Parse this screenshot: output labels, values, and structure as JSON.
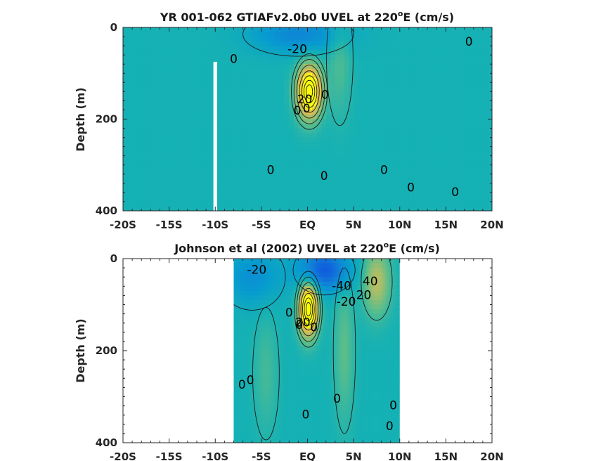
{
  "chart_data": [
    {
      "type": "heatmap",
      "title_main": "YR 001-062 GTIAFv2.0b0 UVEL at 220",
      "title_sup": "o",
      "title_end": "E (cm/s)",
      "ylabel": "Depth (m)",
      "xlim": [
        -20,
        20
      ],
      "ylim": [
        400,
        0
      ],
      "xticks": [
        -20,
        -15,
        -10,
        -5,
        0,
        5,
        10,
        15,
        20
      ],
      "xtick_labels": [
        "-20S",
        "-15S",
        "-10S",
        "-5S",
        "EQ",
        "5N",
        "10N",
        "15N",
        "20N"
      ],
      "yticks": [
        0,
        200,
        400
      ],
      "ytick_labels": [
        "0",
        "200",
        "400"
      ],
      "data_extent": [
        -20,
        20
      ],
      "gaps": [
        {
          "x0": -10.2,
          "x1": -9.8,
          "depth_top": 75
        }
      ],
      "features": [
        {
          "kind": "core",
          "x": 0.2,
          "depth": 140,
          "dx": 1.3,
          "dz": 55,
          "value": 90
        },
        {
          "kind": "jet",
          "x": -1,
          "depth": 15,
          "dx": 5,
          "dz": 40,
          "value": -25
        },
        {
          "kind": "jet",
          "x": 3.5,
          "depth": 70,
          "dx": 1.2,
          "dz": 120,
          "value": 12
        }
      ],
      "contour_labels": [
        {
          "x": -8,
          "depth": 70,
          "text": "0"
        },
        {
          "x": -1.1,
          "depth": 48,
          "text": "-20"
        },
        {
          "x": 17.5,
          "depth": 32,
          "text": "0"
        },
        {
          "x": 1.9,
          "depth": 148,
          "text": "0"
        },
        {
          "x": -0.3,
          "depth": 158,
          "text": "20"
        },
        {
          "x": -1.1,
          "depth": 182,
          "text": "0"
        },
        {
          "x": -0.1,
          "depth": 178,
          "text": "0"
        },
        {
          "x": -4,
          "depth": 312,
          "text": "0"
        },
        {
          "x": 1.8,
          "depth": 325,
          "text": "0"
        },
        {
          "x": 8.3,
          "depth": 312,
          "text": "0"
        },
        {
          "x": 11.2,
          "depth": 350,
          "text": "0"
        },
        {
          "x": 16,
          "depth": 360,
          "text": "0"
        }
      ]
    },
    {
      "type": "heatmap",
      "title_main": "Johnson et al (2002) UVEL at 220",
      "title_sup": "o",
      "title_end": "E (cm/s)",
      "ylabel": "Depth (m)",
      "xlim": [
        -20,
        20
      ],
      "ylim": [
        400,
        0
      ],
      "xticks": [
        -20,
        -15,
        -10,
        -5,
        0,
        5,
        10,
        15,
        20
      ],
      "xtick_labels": [
        "-20S",
        "-15S",
        "-10S",
        "-5S",
        "EQ",
        "5N",
        "10N",
        "15N",
        "20N"
      ],
      "yticks": [
        0,
        200,
        400
      ],
      "ytick_labels": [
        "0",
        "200",
        "400"
      ],
      "data_extent": [
        -8,
        10
      ],
      "features": [
        {
          "kind": "core",
          "x": 0.1,
          "depth": 110,
          "dx": 1.0,
          "dz": 55,
          "value": 95
        },
        {
          "kind": "jet",
          "x": 1.8,
          "depth": 25,
          "dx": 2.8,
          "dz": 45,
          "value": -45
        },
        {
          "kind": "jet",
          "x": -6,
          "depth": 40,
          "dx": 3,
          "dz": 60,
          "value": -20
        },
        {
          "kind": "jet",
          "x": 7.5,
          "depth": 50,
          "dx": 1.4,
          "dz": 70,
          "value": 35
        },
        {
          "kind": "jet",
          "x": 4,
          "depth": 200,
          "dx": 1.0,
          "dz": 150,
          "value": 15
        },
        {
          "kind": "jet",
          "x": -4.5,
          "depth": 250,
          "dx": 1.2,
          "dz": 120,
          "value": 10
        }
      ],
      "contour_labels": [
        {
          "x": -5.5,
          "depth": 25,
          "text": "-20"
        },
        {
          "x": 3.7,
          "depth": 60,
          "text": "-40"
        },
        {
          "x": 6.1,
          "depth": 80,
          "text": "20"
        },
        {
          "x": 4.2,
          "depth": 95,
          "text": "-20"
        },
        {
          "x": 6.8,
          "depth": 50,
          "text": "40"
        },
        {
          "x": -2,
          "depth": 118,
          "text": "0"
        },
        {
          "x": -0.5,
          "depth": 140,
          "text": "20"
        },
        {
          "x": -0.9,
          "depth": 145,
          "text": "0"
        },
        {
          "x": 0.7,
          "depth": 150,
          "text": "0"
        },
        {
          "x": -7.1,
          "depth": 275,
          "text": "0"
        },
        {
          "x": -6.2,
          "depth": 265,
          "text": "0"
        },
        {
          "x": 3.2,
          "depth": 305,
          "text": "0"
        },
        {
          "x": -0.2,
          "depth": 340,
          "text": "0"
        },
        {
          "x": 9.3,
          "depth": 320,
          "text": "0"
        },
        {
          "x": 8.9,
          "depth": 365,
          "text": "0"
        }
      ]
    }
  ]
}
